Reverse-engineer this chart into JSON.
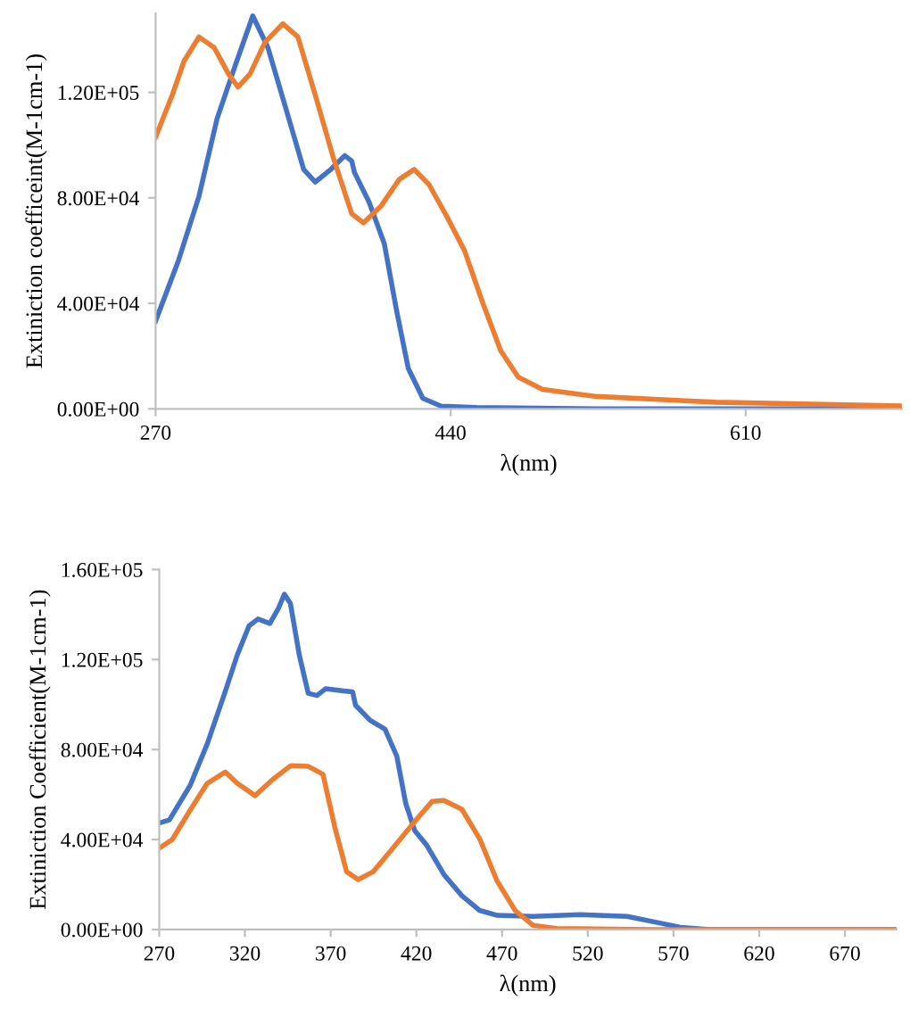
{
  "chart_data": [
    {
      "type": "line",
      "xlabel": "λ(nm)",
      "ylabel": "Extiniction coefficeint(M-1cm-1)",
      "xlim": [
        270,
        700
      ],
      "xticks": [
        270,
        440,
        610
      ],
      "ylim": [
        0,
        150000
      ],
      "yticks": [
        {
          "value": 0,
          "label": "0.00E+00"
        },
        {
          "value": 40000,
          "label": "4.00E+04"
        },
        {
          "value": 80000,
          "label": "8.00E+04"
        },
        {
          "value": 120000,
          "label": "1.20E+05"
        }
      ],
      "grid": false,
      "marker": "none",
      "line_style": "solid",
      "series": [
        {
          "color": "#4472c4",
          "x": [
            270,
            283,
            295,
            305.4,
            315.8,
            326,
            334.7,
            345,
            355.3,
            362,
            371,
            379,
            383,
            384.6,
            393,
            401.8,
            408.7,
            415.6,
            424,
            434.5,
            455,
            524,
            700
          ],
          "values": [
            33300,
            55900,
            80600,
            110000,
            130000,
            149000,
            137000,
            114000,
            90800,
            86000,
            90800,
            96000,
            94000,
            89600,
            78400,
            62600,
            37800,
            15300,
            4000,
            1000,
            500,
            0,
            0
          ]
        },
        {
          "color": "#ed7d31",
          "x": [
            270,
            279.6,
            286.5,
            295,
            303.7,
            312,
            317.5,
            324.4,
            333,
            343.3,
            352,
            362,
            372.5,
            383,
            389.8,
            400,
            410.4,
            419,
            427.6,
            438,
            448,
            458.6,
            468.9,
            479,
            493,
            524,
            592.8,
            700
          ],
          "values": [
            103000,
            119000,
            132000,
            141000,
            137000,
            127000,
            122000,
            127000,
            139000,
            146000,
            141000,
            119000,
            95000,
            74000,
            70500,
            77000,
            87000,
            90800,
            85000,
            72700,
            60000,
            40000,
            22000,
            12000,
            7400,
            4700,
            2500,
            1100
          ]
        }
      ]
    },
    {
      "type": "line",
      "xlabel": "λ(nm)",
      "ylabel": "Extiniction Coefficient(M-1cm-1)",
      "xlim": [
        270,
        700
      ],
      "xticks": [
        270,
        320,
        370,
        420,
        470,
        520,
        570,
        620,
        670
      ],
      "ylim": [
        0,
        160000
      ],
      "yticks": [
        {
          "value": 0,
          "label": "0.00E+00"
        },
        {
          "value": 40000,
          "label": "4.00E+04"
        },
        {
          "value": 80000,
          "label": "8.00E+04"
        },
        {
          "value": 120000,
          "label": "1.20E+05"
        },
        {
          "value": 160000,
          "label": "1.60E+05"
        }
      ],
      "grid": false,
      "marker": "none",
      "line_style": "solid",
      "series": [
        {
          "color": "#4472c4",
          "x": [
            270,
            275.9,
            288,
            298,
            308.6,
            315.5,
            322.4,
            327.6,
            334.5,
            339.7,
            343,
            346.5,
            351.7,
            356.9,
            362,
            367,
            377.6,
            382.8,
            384.5,
            393,
            401.7,
            408.6,
            413.8,
            419,
            425.9,
            436.2,
            446.6,
            456.9,
            467.2,
            488,
            515.5,
            543,
            560,
            574,
            591,
            700
          ],
          "values": [
            47400,
            48700,
            64000,
            82500,
            106000,
            122000,
            135000,
            138000,
            136000,
            143000,
            149000,
            145000,
            122000,
            105000,
            104000,
            107000,
            106000,
            105600,
            99700,
            93000,
            89000,
            77000,
            56000,
            44000,
            37600,
            24300,
            15000,
            8500,
            6300,
            5800,
            6600,
            5800,
            3200,
            1000,
            0,
            0
          ]
        },
        {
          "color": "#ed7d31",
          "x": [
            270,
            277.6,
            288,
            298,
            308.6,
            315.5,
            325.9,
            336.2,
            346.6,
            357,
            365.5,
            372.4,
            379.3,
            386,
            394.8,
            405,
            419,
            429.3,
            436,
            446.6,
            457,
            467,
            477.6,
            488,
            501.7,
            557,
            700
          ],
          "values": [
            36200,
            40000,
            53000,
            65000,
            70000,
            65000,
            59500,
            66700,
            72800,
            72500,
            69000,
            45500,
            25700,
            22200,
            25700,
            35000,
            48000,
            57000,
            57400,
            53400,
            40200,
            21700,
            8500,
            1900,
            500,
            0,
            0
          ]
        }
      ]
    }
  ]
}
